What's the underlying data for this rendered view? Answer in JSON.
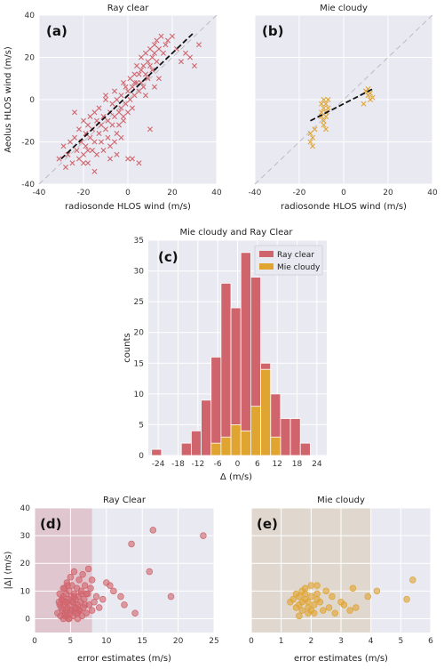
{
  "colors": {
    "bg": "#e9e9f1",
    "grid": "#ffffff",
    "ray": "#d0646c",
    "mie": "#e0a431",
    "identity": "#bcbcc6",
    "fit": "#111111",
    "ray_shade": "#d6a3ad",
    "mie_shade": "#d9cbb0"
  },
  "chart_data": [
    {
      "id": "a",
      "panel_label": "(a)",
      "type": "scatter",
      "title": "Ray clear",
      "xlabel": "radiosonde HLOS wind (m/s)",
      "ylabel": "Aeolus HLOS wind (m/s)",
      "xlim": [
        -40,
        40
      ],
      "ylim": [
        -40,
        40
      ],
      "xticks": [
        "-40",
        "-20",
        "0",
        "20",
        "40"
      ],
      "yticks": [
        "-40",
        "-20",
        "0",
        "20",
        "40"
      ],
      "marker": "x",
      "identity_line": true,
      "fit_line": {
        "x": [
          -30,
          30
        ],
        "y": [
          -28,
          32
        ]
      },
      "x": [
        -31,
        -29,
        -28,
        -27,
        -26,
        -25,
        -24,
        -23,
        -22,
        -22,
        -21,
        -20,
        -20,
        -19,
        -19,
        -18,
        -18,
        -17,
        -17,
        -16,
        -16,
        -15,
        -15,
        -14,
        -14,
        -13,
        -13,
        -12,
        -12,
        -11,
        -11,
        -10,
        -10,
        -9,
        -9,
        -8,
        -8,
        -7,
        -7,
        -6,
        -6,
        -5,
        -5,
        -4,
        -4,
        -3,
        -3,
        -2,
        -2,
        -1,
        -1,
        0,
        0,
        1,
        1,
        2,
        2,
        3,
        3,
        4,
        4,
        5,
        5,
        6,
        6,
        7,
        7,
        8,
        8,
        9,
        9,
        10,
        10,
        11,
        11,
        12,
        12,
        13,
        13,
        14,
        15,
        16,
        17,
        18,
        20,
        22,
        24,
        26,
        28,
        30,
        32,
        -24,
        -18,
        -10,
        -6,
        -2,
        2,
        6,
        10,
        0,
        -15,
        -5,
        5,
        -20,
        12,
        -8,
        3,
        -3,
        8,
        14
      ],
      "y": [
        -28,
        -22,
        -32,
        -26,
        -20,
        -30,
        -18,
        -24,
        -14,
        -28,
        -20,
        -10,
        -26,
        -16,
        -22,
        -12,
        -30,
        -18,
        -8,
        -14,
        -24,
        -20,
        -6,
        -10,
        -26,
        -16,
        -4,
        -12,
        -20,
        -8,
        -24,
        -14,
        2,
        -10,
        -18,
        -6,
        -22,
        -2,
        -12,
        -8,
        4,
        -16,
        0,
        -6,
        -12,
        2,
        -4,
        -10,
        8,
        -2,
        6,
        -6,
        4,
        10,
        0,
        6,
        -4,
        12,
        2,
        8,
        16,
        4,
        12,
        20,
        8,
        16,
        6,
        22,
        12,
        18,
        10,
        24,
        16,
        20,
        14,
        26,
        22,
        18,
        28,
        24,
        30,
        22,
        26,
        28,
        30,
        24,
        18,
        22,
        20,
        16,
        26,
        -6,
        -24,
        0,
        -20,
        -8,
        -28,
        14,
        -14,
        -28,
        -34,
        -26,
        -30,
        -30,
        6,
        -28,
        8,
        -18,
        2,
        10
      ]
    },
    {
      "id": "b",
      "panel_label": "(b)",
      "type": "scatter",
      "title": "Mie cloudy",
      "xlabel": "radiosonde HLOS wind (m/s)",
      "ylabel": "",
      "xlim": [
        -40,
        40
      ],
      "ylim": [
        -40,
        40
      ],
      "xticks": [
        "-40",
        "-20",
        "0",
        "20",
        "40"
      ],
      "yticks": [],
      "marker": "x",
      "identity_line": true,
      "fit_line": {
        "x": [
          -15,
          13
        ],
        "y": [
          -10,
          5
        ]
      },
      "x": [
        -15,
        -15,
        -14,
        -14,
        -13,
        -10,
        -10,
        -9,
        -9,
        -9,
        -8,
        -8,
        -8,
        -7,
        -7,
        -9,
        -10,
        -8,
        10,
        11,
        11,
        12,
        12,
        13,
        9,
        10
      ],
      "y": [
        -20,
        -16,
        -22,
        -18,
        -14,
        -2,
        -8,
        -4,
        -10,
        0,
        -6,
        -8,
        -2,
        -4,
        0,
        -12,
        -6,
        -14,
        4,
        2,
        5,
        0,
        3,
        1,
        -2,
        4
      ]
    },
    {
      "id": "c",
      "panel_label": "(c)",
      "type": "bar",
      "title": "Mie cloudy and Ray Clear",
      "xlabel": "Δ (m/s)",
      "ylabel": "counts",
      "xlim": [
        -27,
        27
      ],
      "ylim": [
        0,
        35
      ],
      "xticks": [
        "-24",
        "-18",
        "-12",
        "-6",
        "0",
        "6",
        "12",
        "18",
        "24"
      ],
      "yticks": [
        "0",
        "5",
        "10",
        "15",
        "20",
        "25",
        "30",
        "35"
      ],
      "bin_edges": [
        -26,
        -23,
        -20,
        -17,
        -14,
        -11,
        -8,
        -5,
        -2,
        1,
        4,
        7,
        10,
        13,
        16,
        19,
        22
      ],
      "legend": "top-right",
      "series": [
        {
          "name": "Ray clear",
          "values": [
            1,
            0,
            0,
            2,
            4,
            9,
            16,
            28,
            24,
            33,
            29,
            15,
            10,
            6,
            6,
            2,
            0
          ]
        },
        {
          "name": "Mie cloudy",
          "values": [
            0,
            0,
            0,
            0,
            0,
            0,
            2,
            3,
            5,
            4,
            8,
            14,
            3,
            0,
            0,
            0,
            0
          ]
        }
      ]
    },
    {
      "id": "d",
      "panel_label": "(d)",
      "type": "scatter",
      "title": "Ray Clear",
      "xlabel": "error estimates (m/s)",
      "ylabel": "|Δ| (m/s)",
      "xlim": [
        0,
        25
      ],
      "ylim": [
        -5,
        40
      ],
      "xticks": [
        "0",
        "5",
        "10",
        "15",
        "20",
        "25"
      ],
      "yticks": [
        "0",
        "10",
        "20",
        "30",
        "40"
      ],
      "marker": "o",
      "shaded_region": [
        0,
        8
      ],
      "x": [
        3.2,
        3.4,
        3.5,
        3.6,
        3.7,
        3.8,
        3.9,
        4.0,
        4.0,
        4.1,
        4.2,
        4.2,
        4.3,
        4.4,
        4.4,
        4.5,
        4.5,
        4.6,
        4.7,
        4.7,
        4.8,
        4.9,
        5.0,
        5.0,
        5.1,
        5.2,
        5.2,
        5.3,
        5.4,
        5.5,
        5.5,
        5.6,
        5.7,
        5.8,
        5.9,
        6.0,
        6.0,
        6.1,
        6.2,
        6.3,
        6.4,
        6.5,
        6.6,
        6.7,
        6.8,
        6.9,
        7.0,
        7.2,
        7.4,
        7.6,
        7.8,
        8.0,
        8.3,
        8.6,
        9.0,
        9.5,
        10.0,
        11.0,
        12.0,
        13.5,
        14.0,
        16.0,
        16.5,
        19.0,
        23.5,
        3.5,
        4.0,
        4.5,
        5.0,
        5.5,
        6.0,
        6.5,
        7.0,
        7.5,
        4.2,
        4.8,
        5.4,
        6.2,
        3.8,
        4.6,
        5.8,
        7.2,
        8.0,
        10.5,
        12.5
      ],
      "y": [
        2,
        6,
        9,
        1,
        4,
        7,
        3,
        0,
        8,
        5,
        2,
        11,
        6,
        3,
        9,
        1,
        13,
        4,
        7,
        0,
        10,
        5,
        2,
        15,
        8,
        3,
        12,
        6,
        1,
        9,
        17,
        4,
        7,
        2,
        11,
        5,
        0,
        8,
        14,
        3,
        6,
        10,
        1,
        16,
        4,
        7,
        12,
        2,
        9,
        5,
        11,
        3,
        6,
        8,
        4,
        7,
        13,
        10,
        8,
        27,
        2,
        17,
        32,
        8,
        30,
        5,
        11,
        6,
        3,
        8,
        2,
        9,
        5,
        18,
        1,
        0,
        6,
        3,
        7,
        12,
        4,
        9,
        14,
        12,
        5
      ]
    },
    {
      "id": "e",
      "panel_label": "(e)",
      "type": "scatter",
      "title": "Mie cloudy",
      "xlabel": "error estimates (m/s)",
      "ylabel": "",
      "xlim": [
        0,
        6
      ],
      "ylim": [
        -5,
        40
      ],
      "xticks": [
        "0",
        "1",
        "2",
        "3",
        "4",
        "5",
        "6"
      ],
      "yticks": [],
      "marker": "o",
      "shaded_region": [
        0,
        4
      ],
      "x": [
        1.3,
        1.4,
        1.5,
        1.5,
        1.6,
        1.6,
        1.7,
        1.7,
        1.8,
        1.8,
        1.9,
        1.9,
        2.0,
        2.0,
        2.1,
        2.1,
        2.2,
        2.2,
        2.3,
        2.4,
        2.5,
        2.6,
        2.7,
        2.8,
        3.0,
        3.1,
        3.3,
        3.4,
        3.5,
        3.9,
        4.2,
        5.2,
        5.4,
        1.6,
        1.8,
        2.0,
        2.2,
        1.7,
        1.9
      ],
      "y": [
        6,
        7,
        9,
        4,
        8,
        5,
        10,
        3,
        7,
        11,
        6,
        4,
        8,
        12,
        5,
        2,
        9,
        7,
        6,
        3,
        10,
        4,
        8,
        2,
        6,
        5,
        3,
        11,
        4,
        8,
        10,
        7,
        14,
        1,
        9,
        3,
        12,
        6,
        2
      ]
    }
  ]
}
